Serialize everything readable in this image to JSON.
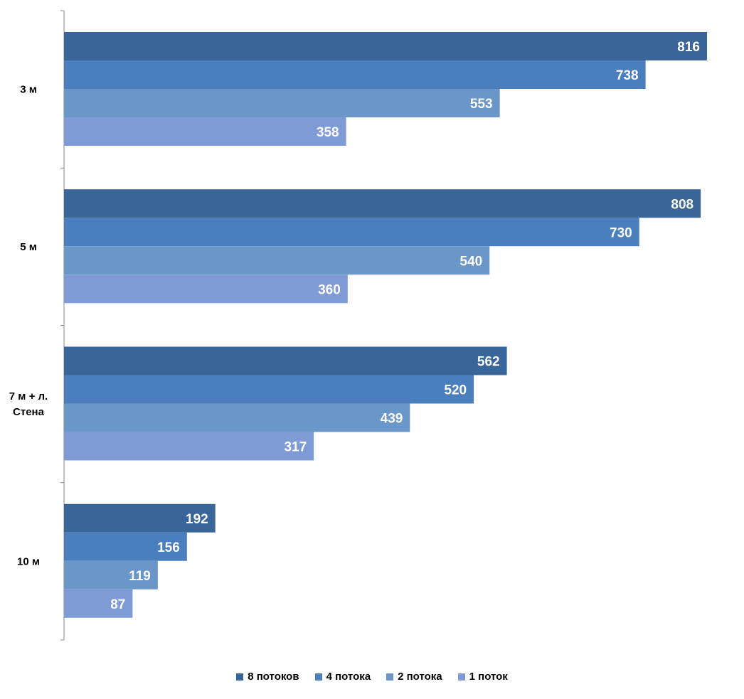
{
  "chart_data": {
    "type": "bar",
    "orientation": "horizontal",
    "categories": [
      "3 м",
      "5 м",
      "7 м + л. Стена",
      "10 м"
    ],
    "category_lines": [
      [
        "3 м"
      ],
      [
        "5 м"
      ],
      [
        "7 м + л.",
        "Стена"
      ],
      [
        "10 м"
      ]
    ],
    "series": [
      {
        "name": "8 потоков",
        "color": "#3a6598",
        "values": [
          816,
          808,
          562,
          192
        ]
      },
      {
        "name": "4 потока",
        "color": "#4a7ebd",
        "values": [
          738,
          730,
          520,
          156
        ]
      },
      {
        "name": "2 потока",
        "color": "#6a96c8",
        "values": [
          553,
          540,
          439,
          119
        ]
      },
      {
        "name": "1 поток",
        "color": "#7f9bd6",
        "values": [
          358,
          360,
          317,
          87
        ]
      }
    ],
    "xlim": [
      0,
      816
    ],
    "grid": false,
    "legend_position": "bottom",
    "data_labels": true
  }
}
